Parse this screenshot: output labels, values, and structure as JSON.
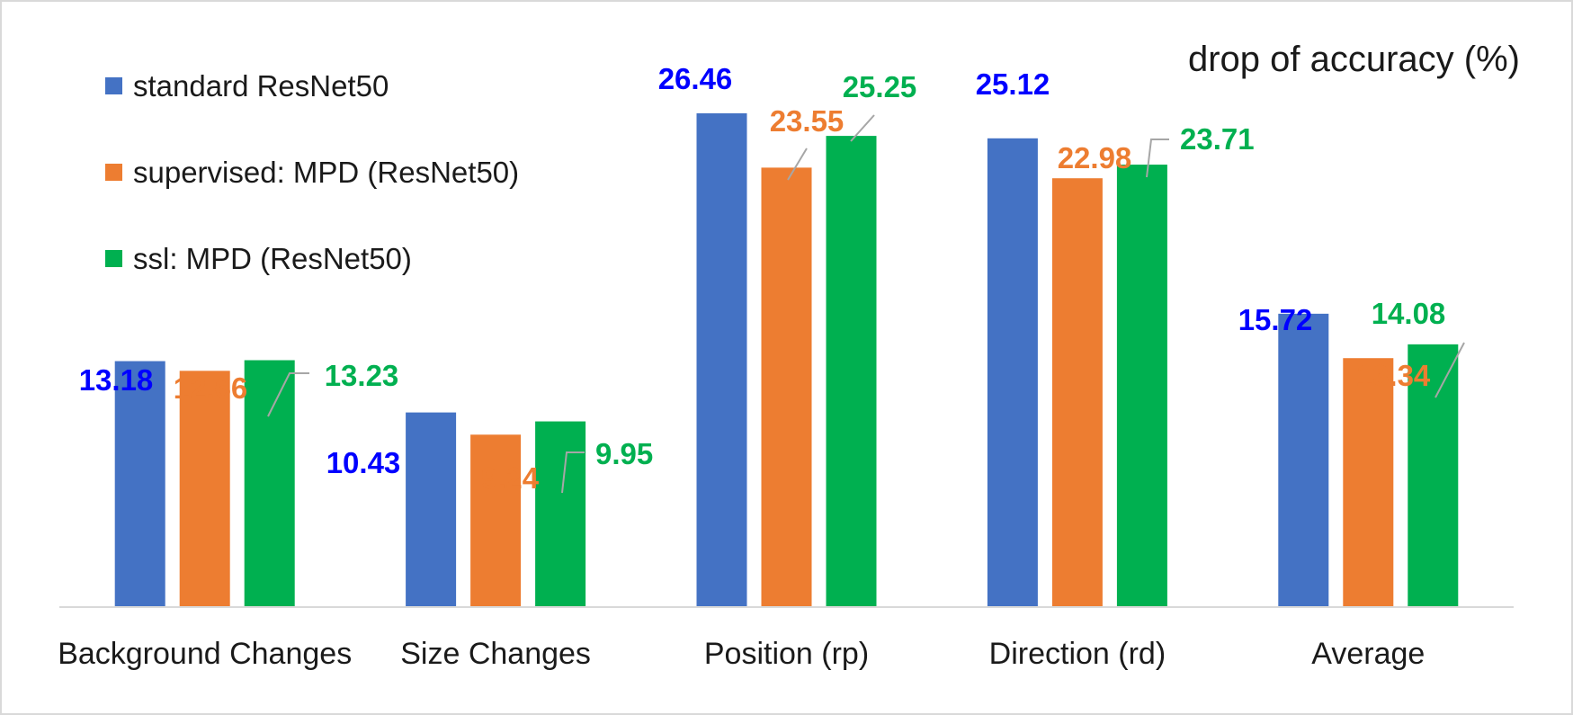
{
  "chart_data": {
    "type": "bar",
    "title": "drop of accuracy (%)",
    "xlabel": "",
    "ylabel": "",
    "ylim": [
      0,
      29.5
    ],
    "grid": false,
    "legend_position": "top-left",
    "categories": [
      "Background Changes",
      "Size Changes",
      "Position (rp)",
      "Direction (rd)",
      "Average"
    ],
    "series": [
      {
        "name": "standard ResNet50",
        "color": "#4472c4",
        "label_color": "#0000ff",
        "values": [
          13.18,
          10.43,
          26.46,
          25.12,
          15.72
        ]
      },
      {
        "name": "supervised: MPD (ResNet50)",
        "color": "#ed7d31",
        "label_color": "#ed7d31",
        "values": [
          12.66,
          9.24,
          23.55,
          22.98,
          13.34
        ]
      },
      {
        "name": "ssl: MPD (ResNet50)",
        "color": "#00b050",
        "label_color": "#00b050",
        "values": [
          13.23,
          9.95,
          25.25,
          23.71,
          14.08
        ]
      }
    ]
  }
}
